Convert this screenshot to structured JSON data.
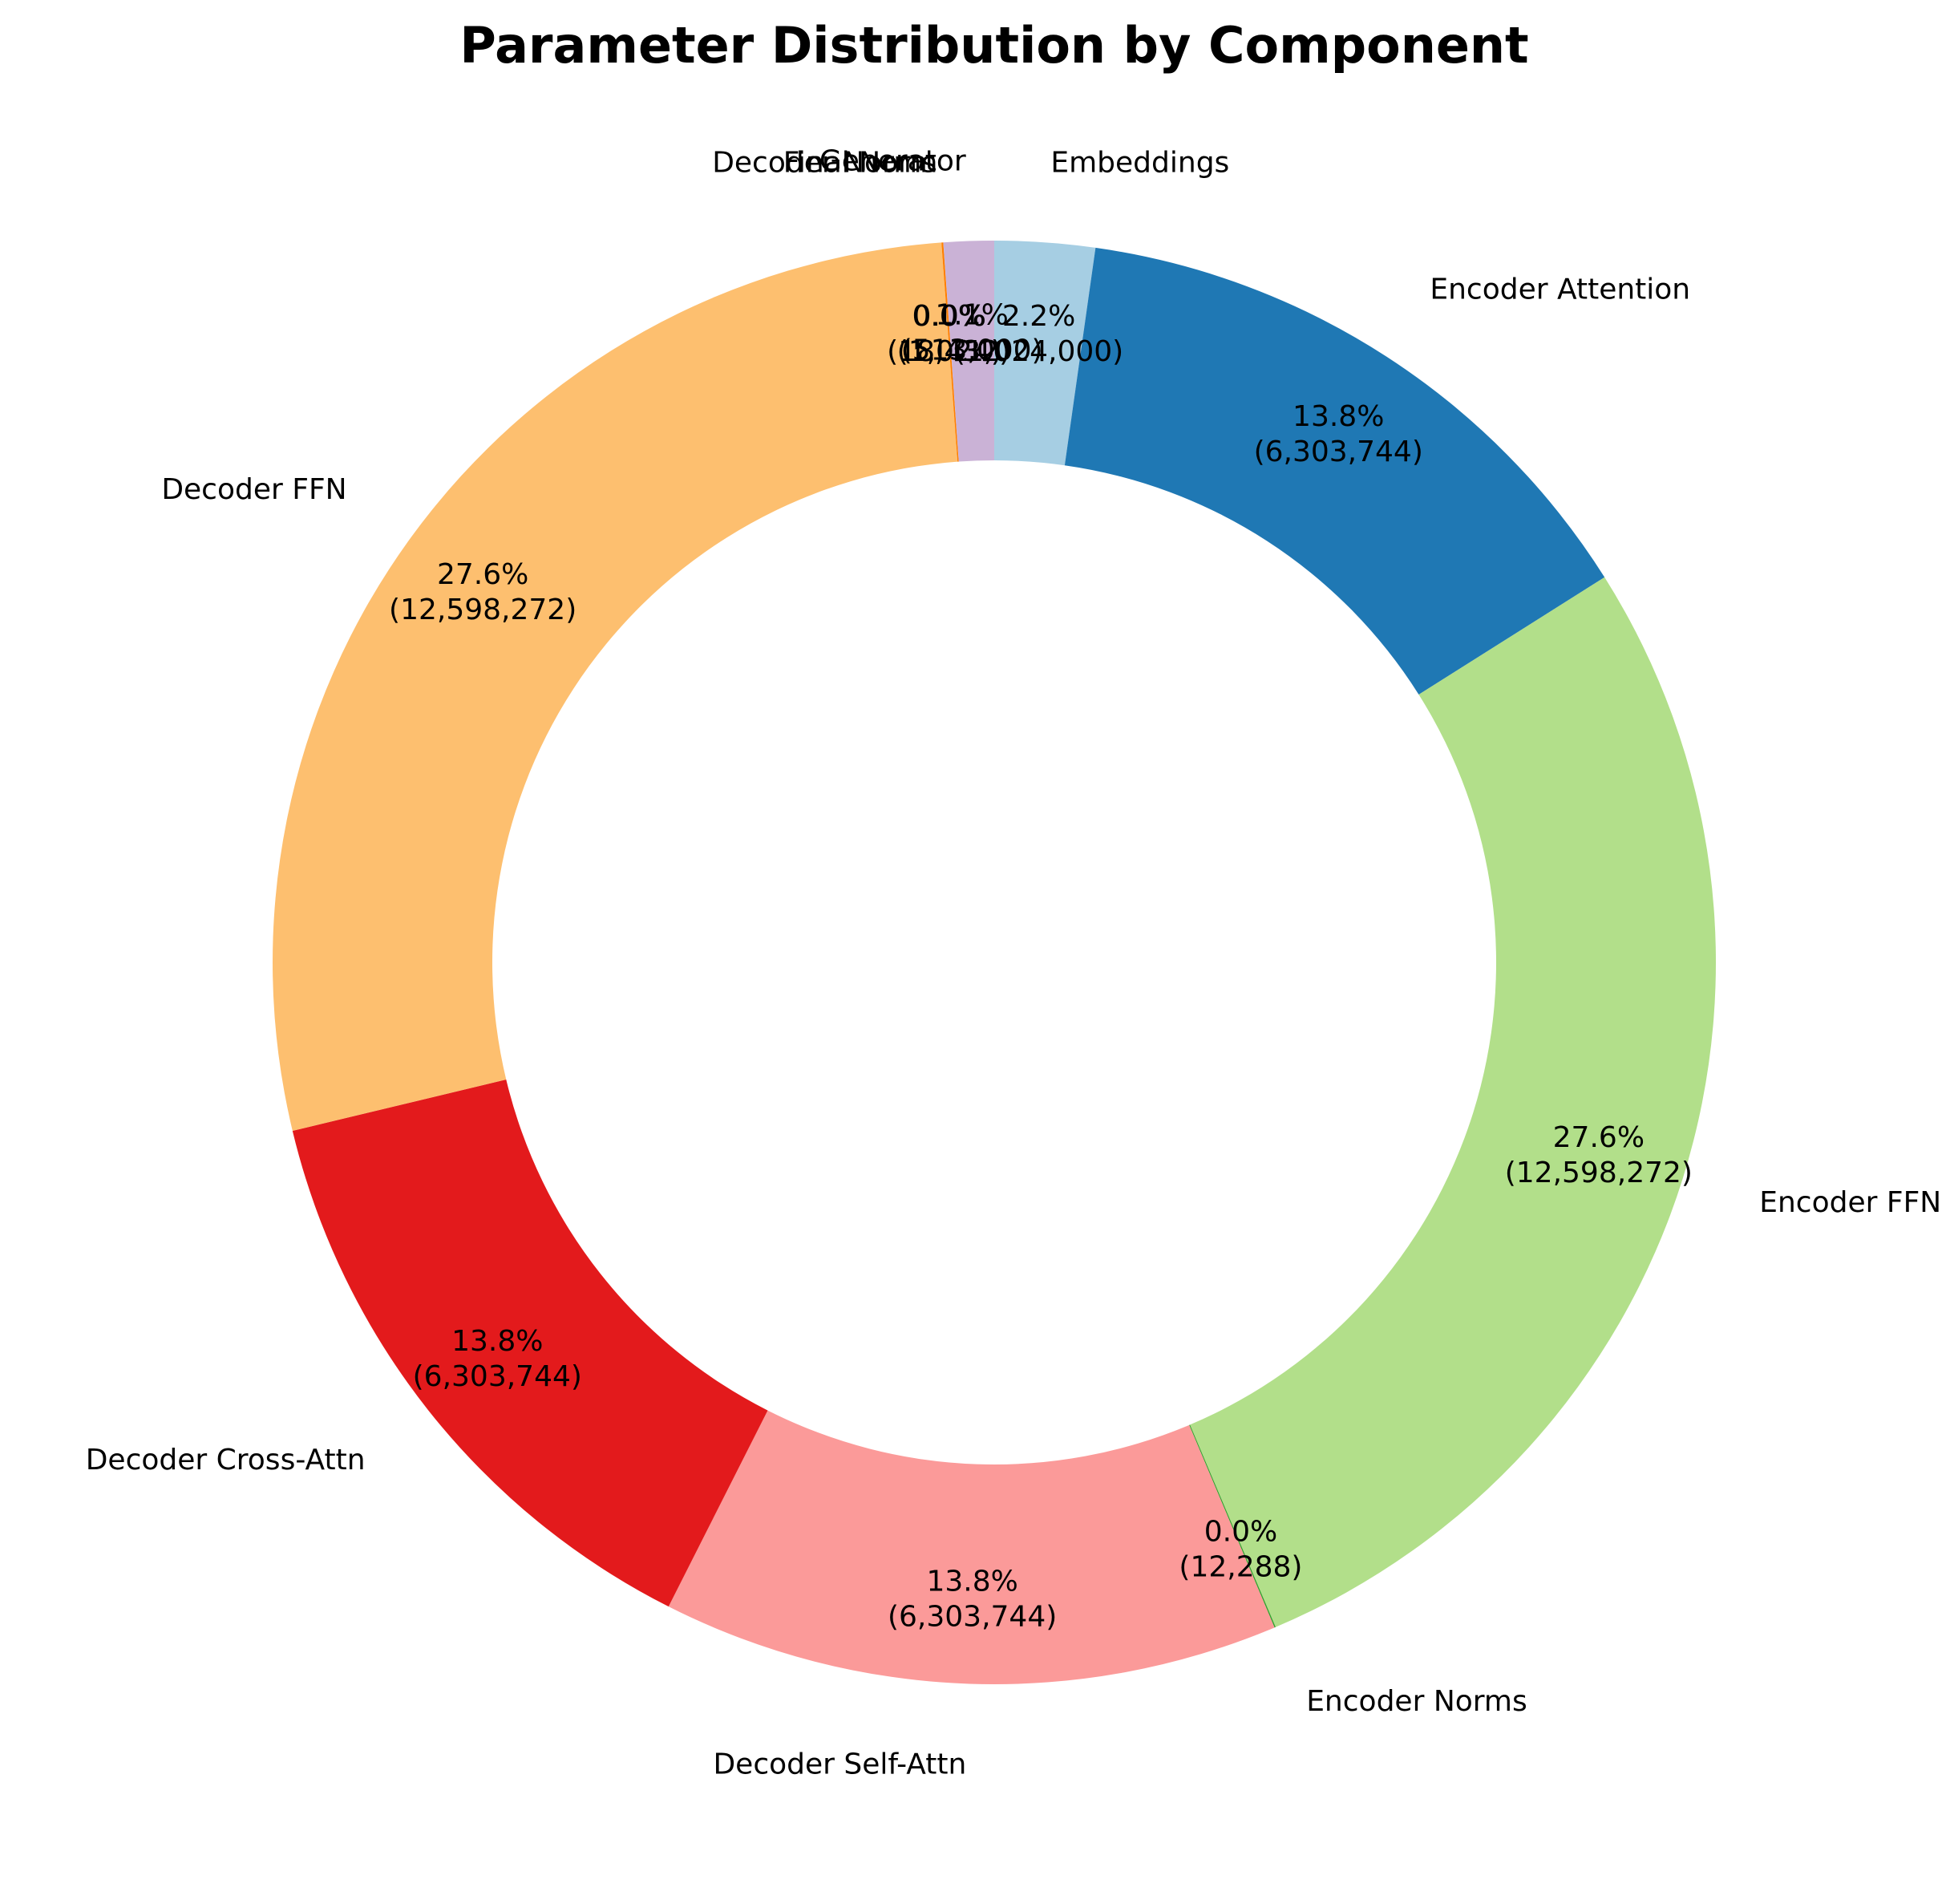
{
  "chart_data": {
    "type": "pie",
    "donut": true,
    "title": "Parameter Distribution by Component",
    "start_angle_deg": 90,
    "direction": "clockwise",
    "slices": [
      {
        "label": "Embeddings",
        "value": 1024000,
        "percent_text": "2.2%",
        "count_text": "(1,024,000)",
        "color": "#a6cee3"
      },
      {
        "label": "Encoder Attention",
        "value": 6303744,
        "percent_text": "13.8%",
        "count_text": "(6,303,744)",
        "color": "#1f78b4"
      },
      {
        "label": "Encoder FFN",
        "value": 12598272,
        "percent_text": "27.6%",
        "count_text": "(12,598,272)",
        "color": "#b2df8a"
      },
      {
        "label": "Encoder Norms",
        "value": 12288,
        "percent_text": "0.0%",
        "count_text": "(12,288)",
        "color": "#33a02c"
      },
      {
        "label": "Decoder Self-Attn",
        "value": 6303744,
        "percent_text": "13.8%",
        "count_text": "(6,303,744)",
        "color": "#fb9a99"
      },
      {
        "label": "Decoder Cross-Attn",
        "value": 6303744,
        "percent_text": "13.8%",
        "count_text": "(6,303,744)",
        "color": "#e31a1c"
      },
      {
        "label": "Decoder FFN",
        "value": 12598272,
        "percent_text": "27.6%",
        "count_text": "(12,598,272)",
        "color": "#fdbf6f"
      },
      {
        "label": "Decoder Norms",
        "value": 18432,
        "percent_text": "0.0%",
        "count_text": "(18,432)",
        "color": "#ff7f00"
      },
      {
        "label": "Final Norm",
        "value": 1024,
        "percent_text": "0.0%",
        "count_text": "(1,024)",
        "color": "#cab2d6"
      },
      {
        "label": "Generator",
        "value": 513000,
        "percent_text": "1.1%",
        "count_text": "(513,000)",
        "color": "#cab2d6"
      }
    ]
  }
}
